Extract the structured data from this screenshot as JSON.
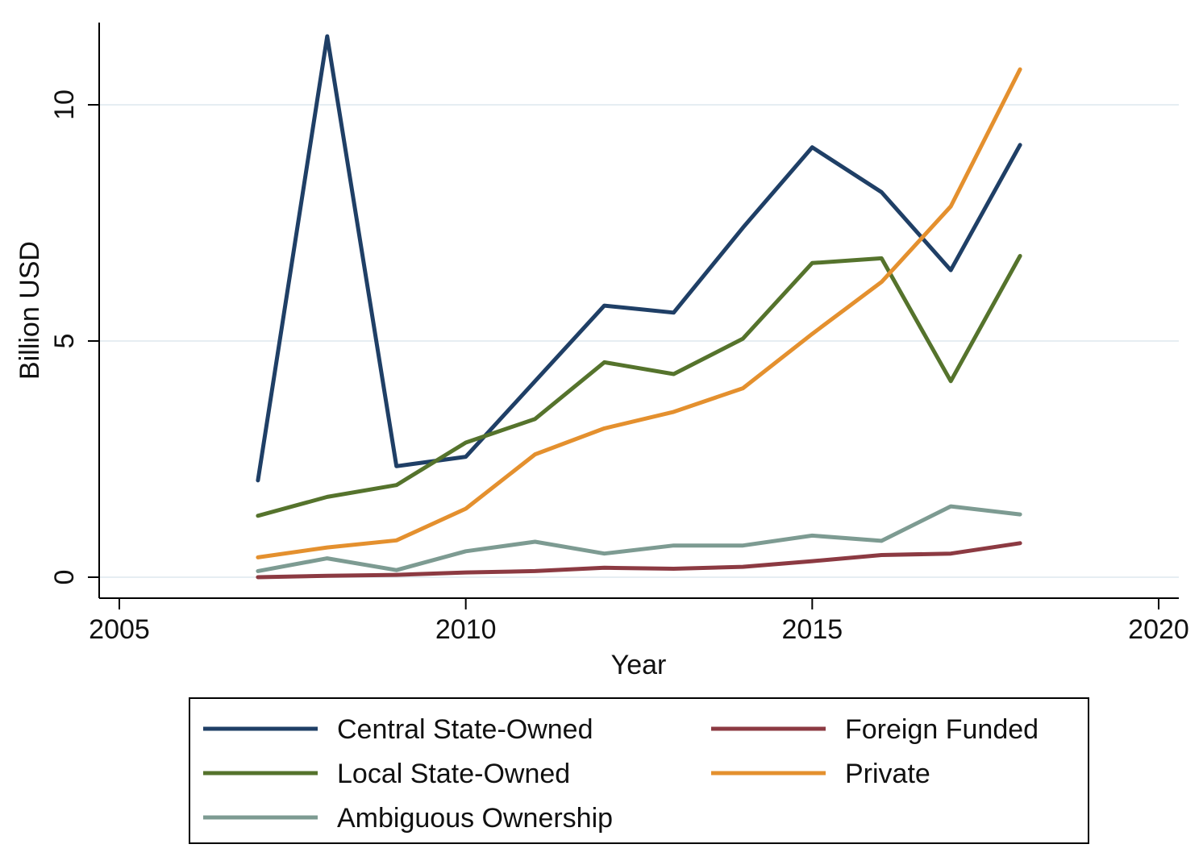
{
  "chart_data": {
    "type": "line",
    "title": "",
    "xlabel": "Year",
    "ylabel": "Billion USD",
    "xlim": [
      2005,
      2020
    ],
    "ylim": [
      -0.45,
      11.8
    ],
    "x_ticks": [
      2005,
      2010,
      2015,
      2020
    ],
    "x_tick_labels": [
      "2005",
      "2010",
      "2015",
      "2020"
    ],
    "y_ticks": [
      0,
      5,
      10
    ],
    "y_tick_labels": [
      "0",
      "5",
      "10"
    ],
    "grid": "horizontal",
    "legend_position": "bottom",
    "x": [
      2007,
      2008,
      2009,
      2010,
      2011,
      2012,
      2013,
      2014,
      2015,
      2016,
      2017,
      2018
    ],
    "series": [
      {
        "name": "Central State-Owned",
        "color": "#1f3f66",
        "values": [
          2.05,
          11.45,
          2.35,
          2.55,
          4.15,
          5.75,
          5.6,
          7.4,
          9.1,
          8.15,
          6.5,
          9.15
        ]
      },
      {
        "name": "Local State-Owned",
        "color": "#55732c",
        "values": [
          1.3,
          1.7,
          1.95,
          2.85,
          3.35,
          4.55,
          4.3,
          5.05,
          6.65,
          6.75,
          4.15,
          6.8
        ]
      },
      {
        "name": "Ambiguous Ownership",
        "color": "#7d9b92",
        "values": [
          0.13,
          0.4,
          0.15,
          0.55,
          0.75,
          0.5,
          0.67,
          0.67,
          0.88,
          0.77,
          1.5,
          1.33
        ]
      },
      {
        "name": "Foreign Funded",
        "color": "#8c3a42",
        "values": [
          0.0,
          0.03,
          0.05,
          0.1,
          0.13,
          0.2,
          0.18,
          0.22,
          0.34,
          0.47,
          0.5,
          0.72
        ]
      },
      {
        "name": "Private",
        "color": "#e4902e",
        "values": [
          0.42,
          0.63,
          0.78,
          1.45,
          2.6,
          3.15,
          3.5,
          4.0,
          5.15,
          6.25,
          7.85,
          10.75
        ]
      }
    ]
  },
  "legend": {
    "items": [
      {
        "label": "Central State-Owned",
        "color": "#1f3f66"
      },
      {
        "label": "Foreign Funded",
        "color": "#8c3a42"
      },
      {
        "label": "Local State-Owned",
        "color": "#55732c"
      },
      {
        "label": "Private",
        "color": "#e4902e"
      },
      {
        "label": "Ambiguous Ownership",
        "color": "#7d9b92"
      }
    ]
  }
}
